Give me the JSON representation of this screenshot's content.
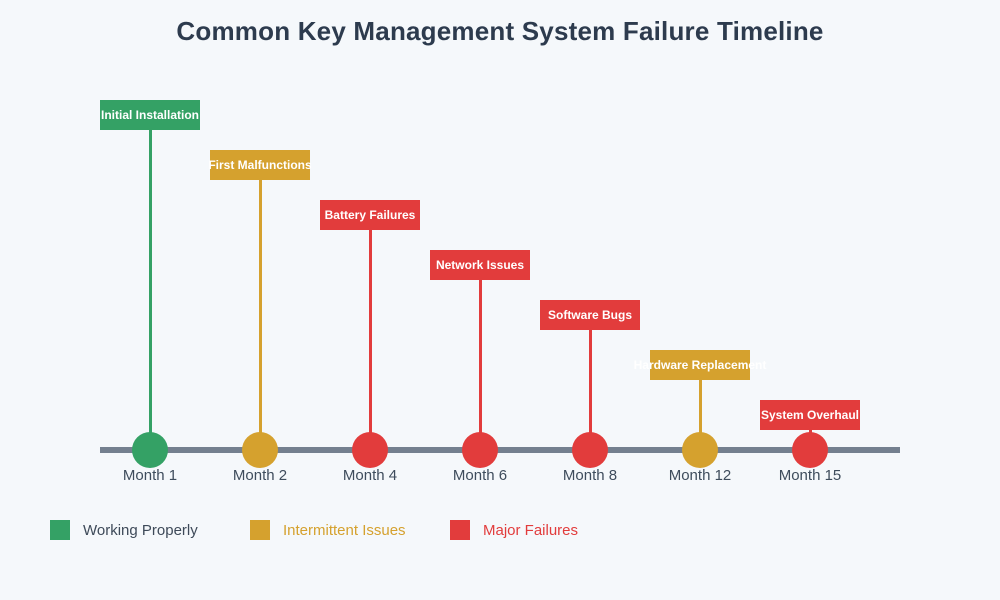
{
  "title": "Common Key Management System Failure Timeline",
  "chart_data": {
    "type": "timeline",
    "title": "Common Key Management System Failure Timeline",
    "x_axis": {
      "ticks": [
        "Month 1",
        "Month 2",
        "Month 4",
        "Month 6",
        "Month 8",
        "Month 12",
        "Month 15"
      ],
      "grid": false
    },
    "events": [
      {
        "month": "Month 1",
        "label": "Initial Installation",
        "status": "working"
      },
      {
        "month": "Month 2",
        "label": "First Malfunctions",
        "status": "intermittent"
      },
      {
        "month": "Month 4",
        "label": "Battery Failures",
        "status": "major"
      },
      {
        "month": "Month 6",
        "label": "Network Issues",
        "status": "major"
      },
      {
        "month": "Month 8",
        "label": "Software Bugs",
        "status": "major"
      },
      {
        "month": "Month 12",
        "label": "Hardware Replacement",
        "status": "intermittent"
      },
      {
        "month": "Month 15",
        "label": "System Overhaul",
        "status": "major"
      }
    ],
    "legend": [
      {
        "label": "Working Properly",
        "status": "working",
        "text_color": "#3E4A59"
      },
      {
        "label": "Intermittent Issues",
        "status": "intermittent",
        "text_color": "#D5A12E"
      },
      {
        "label": "Major Failures",
        "status": "major",
        "text_color": "#E23C3C"
      }
    ],
    "legend_position": "bottom-left",
    "colors": {
      "working": "#34A165",
      "intermittent": "#D5A12E",
      "major": "#E23C3C",
      "axis_line": "#74808F",
      "background": "#F5F8FB",
      "title_text": "#2D3B4E",
      "tick_text": "#3E4C5C",
      "event_label_text": "#FFFFFF"
    }
  }
}
